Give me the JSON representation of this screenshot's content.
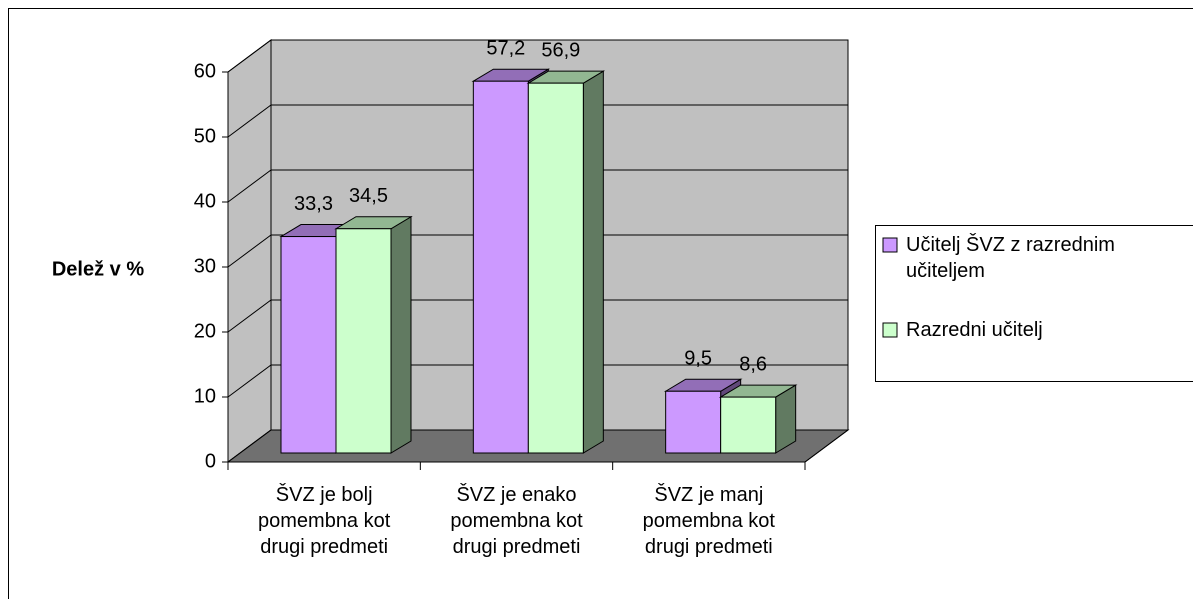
{
  "chart_data": {
    "type": "bar3d",
    "ylabel": "Delež v %",
    "categories": [
      "ŠVZ je bolj pomembna kot drugi predmeti",
      "ŠVZ je enako pomembna kot drugi predmeti",
      "ŠVZ je manj pomembna kot drugi predmeti"
    ],
    "series": [
      {
        "name": "Učitelj ŠVZ z razrednim učiteljem",
        "color": "#cc99ff",
        "values": [
          33.3,
          57.2,
          9.5
        ],
        "value_labels": [
          "33,3",
          "57,2",
          "9,5"
        ]
      },
      {
        "name": "Razredni učitelj",
        "color": "#ccffcc",
        "values": [
          34.5,
          56.9,
          8.6
        ],
        "value_labels": [
          "34,5",
          "56,9",
          "8,6"
        ]
      }
    ],
    "ylim": [
      0,
      60
    ],
    "yticks": [
      0,
      10,
      20,
      30,
      40,
      50,
      60
    ],
    "grid": true,
    "legend": "right"
  }
}
